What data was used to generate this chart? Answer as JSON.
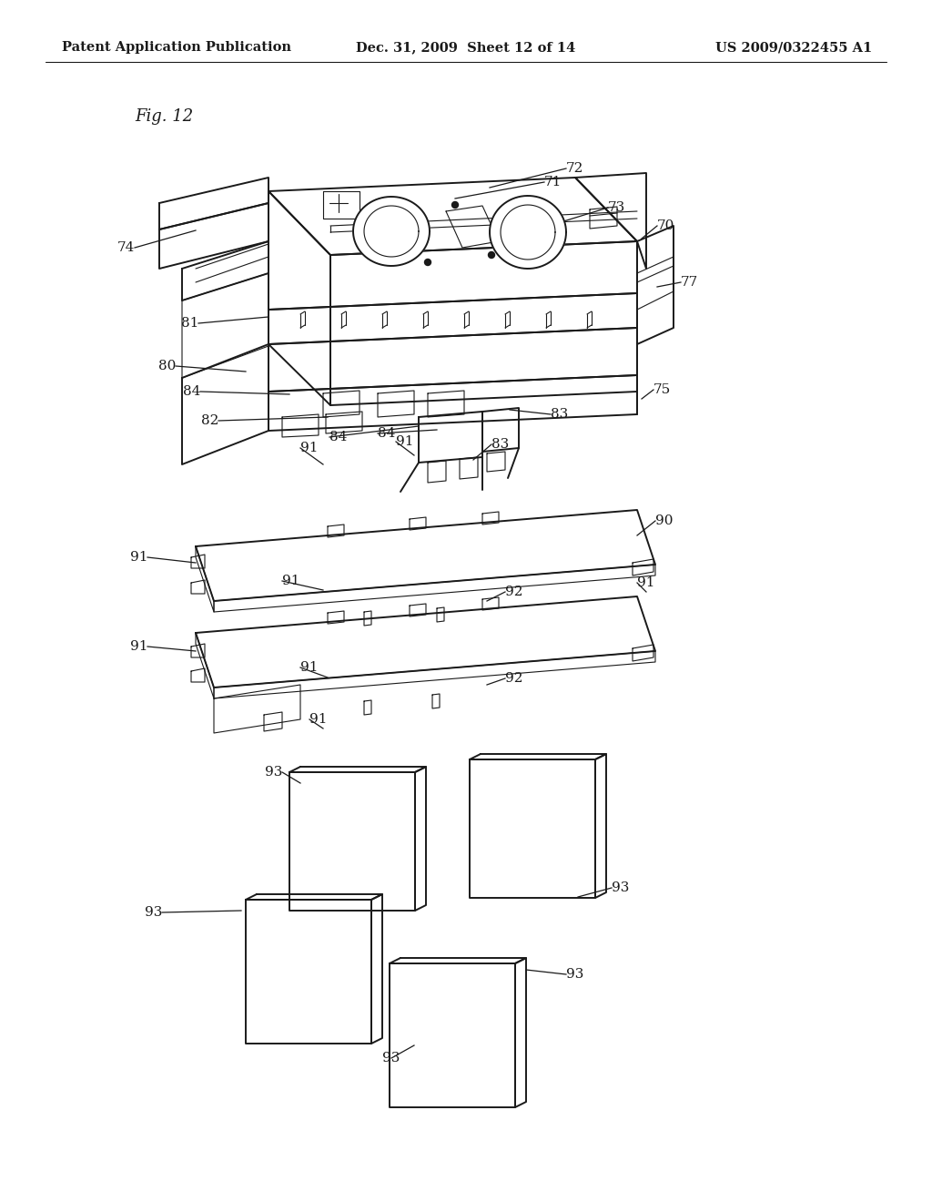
{
  "bg_color": "#ffffff",
  "header_left": "Patent Application Publication",
  "header_center": "Dec. 31, 2009  Sheet 12 of 14",
  "header_right": "US 2009/0322455 A1",
  "fig_label": "Fig. 12",
  "line_color": "#1a1a1a",
  "lw_main": 1.4,
  "lw_thin": 0.8,
  "label_fontsize": 11,
  "header_fontsize": 10.5
}
